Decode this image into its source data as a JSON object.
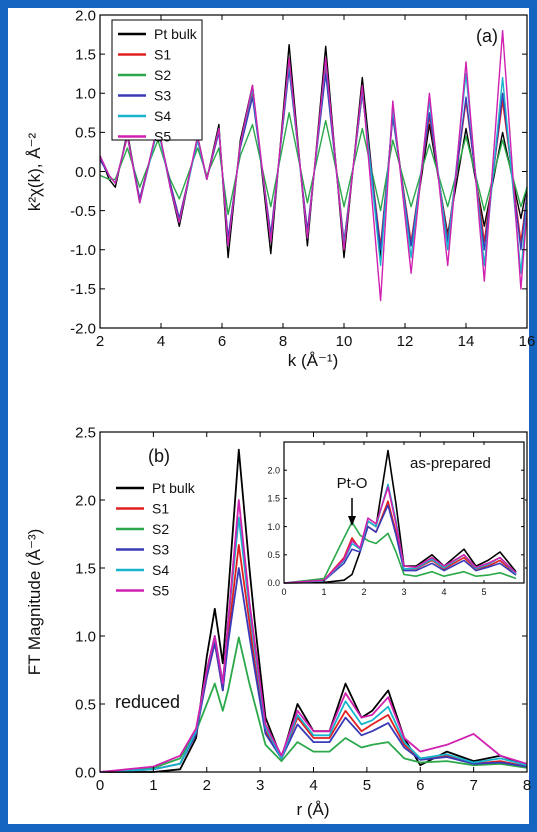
{
  "colors": {
    "frame": "#1565c0",
    "Pt bulk": "#000000",
    "S1": "#e02020",
    "S2": "#2ba84a",
    "S3": "#3a3ab8",
    "S4": "#18b4cc",
    "S5": "#d020b0"
  },
  "chart_data": [
    {
      "type": "line",
      "panel_label": "(a)",
      "xlabel": "k (Å⁻¹)",
      "ylabel": "k²χ(k), Å⁻²",
      "xlim": [
        2,
        16
      ],
      "ylim": [
        -2.0,
        2.0
      ],
      "xticks": [
        "2",
        "4",
        "6",
        "8",
        "10",
        "12",
        "14",
        "16"
      ],
      "yticks": [
        "-2.0",
        "-1.5",
        "-1.0",
        "-0.5",
        "0.0",
        "0.5",
        "1.0",
        "1.5",
        "2.0"
      ],
      "legend_position": "top-left",
      "series": [
        {
          "name": "Pt bulk",
          "x": [
            2,
            2.3,
            2.5,
            2.9,
            3.3,
            3.9,
            4.3,
            4.6,
            5.2,
            5.5,
            5.9,
            6.2,
            6.6,
            7.0,
            7.6,
            8.2,
            8.8,
            9.4,
            10.0,
            10.6,
            11.2,
            11.6,
            12.2,
            12.8,
            13.4,
            14.0,
            14.6,
            15.2,
            15.8,
            16
          ],
          "y": [
            0.2,
            -0.1,
            -0.2,
            0.5,
            -0.4,
            0.6,
            -0.2,
            -0.7,
            0.45,
            -0.1,
            0.6,
            -1.1,
            0.4,
            1.1,
            -1.05,
            1.62,
            -0.95,
            1.6,
            -1.1,
            1.2,
            -1.1,
            0.75,
            -0.95,
            0.6,
            -0.8,
            0.55,
            -0.7,
            0.5,
            -0.6,
            -0.2
          ]
        },
        {
          "name": "S1",
          "x": [
            2,
            2.3,
            2.5,
            2.9,
            3.3,
            3.9,
            4.3,
            4.6,
            5.2,
            5.5,
            5.9,
            6.2,
            6.6,
            7.0,
            7.6,
            8.2,
            8.8,
            9.4,
            10.0,
            10.6,
            11.2,
            11.6,
            12.2,
            12.8,
            13.4,
            14.0,
            14.6,
            15.2,
            15.8,
            16
          ],
          "y": [
            0.2,
            -0.05,
            -0.15,
            0.45,
            -0.35,
            0.55,
            -0.15,
            -0.6,
            0.4,
            -0.1,
            0.55,
            -0.9,
            0.35,
            1.0,
            -0.85,
            1.35,
            -0.8,
            1.35,
            -0.9,
            1.0,
            -0.95,
            0.7,
            -0.9,
            0.7,
            -0.85,
            0.9,
            -0.9,
            0.9,
            -0.9,
            -0.3
          ]
        },
        {
          "name": "S2",
          "x": [
            2,
            2.3,
            2.5,
            2.9,
            3.3,
            3.9,
            4.3,
            4.6,
            5.2,
            5.5,
            5.9,
            6.2,
            6.6,
            7.0,
            7.6,
            8.2,
            8.8,
            9.4,
            10.0,
            10.6,
            11.2,
            11.6,
            12.2,
            12.8,
            13.4,
            14.0,
            14.6,
            15.2,
            15.8,
            16
          ],
          "y": [
            -0.05,
            -0.1,
            -0.1,
            0.3,
            -0.2,
            0.4,
            -0.1,
            -0.35,
            0.3,
            -0.05,
            0.3,
            -0.55,
            0.2,
            0.6,
            -0.45,
            0.75,
            -0.4,
            0.65,
            -0.45,
            0.55,
            -0.5,
            0.4,
            -0.45,
            0.35,
            -0.45,
            0.45,
            -0.5,
            0.4,
            -0.45,
            -0.2
          ]
        },
        {
          "name": "S3",
          "x": [
            2,
            2.3,
            2.5,
            2.9,
            3.3,
            3.9,
            4.3,
            4.6,
            5.2,
            5.5,
            5.9,
            6.2,
            6.6,
            7.0,
            7.6,
            8.2,
            8.8,
            9.4,
            10.0,
            10.6,
            11.2,
            11.6,
            12.2,
            12.8,
            13.4,
            14.0,
            14.6,
            15.2,
            15.8,
            16
          ],
          "y": [
            0.15,
            -0.05,
            -0.15,
            0.45,
            -0.35,
            0.55,
            -0.15,
            -0.6,
            0.4,
            -0.1,
            0.5,
            -0.85,
            0.3,
            0.95,
            -0.8,
            1.3,
            -0.75,
            1.25,
            -0.9,
            1.0,
            -1.0,
            0.7,
            -0.95,
            0.75,
            -0.9,
            0.95,
            -1.0,
            1.0,
            -1.0,
            -0.3
          ]
        },
        {
          "name": "S4",
          "x": [
            2,
            2.3,
            2.5,
            2.9,
            3.3,
            3.9,
            4.3,
            4.6,
            5.2,
            5.5,
            5.9,
            6.2,
            6.6,
            7.0,
            7.6,
            8.2,
            8.8,
            9.4,
            10.0,
            10.6,
            11.2,
            11.6,
            12.2,
            12.8,
            13.4,
            14.0,
            14.6,
            15.2,
            15.8,
            16
          ],
          "y": [
            0.2,
            -0.05,
            -0.15,
            0.45,
            -0.4,
            0.55,
            -0.2,
            -0.65,
            0.4,
            -0.1,
            0.55,
            -0.95,
            0.35,
            1.05,
            -0.9,
            1.4,
            -0.85,
            1.4,
            -0.95,
            1.05,
            -1.2,
            0.8,
            -1.1,
            0.9,
            -1.0,
            1.25,
            -1.2,
            1.2,
            -1.3,
            -0.4
          ]
        },
        {
          "name": "S5",
          "x": [
            2,
            2.3,
            2.5,
            2.9,
            3.3,
            3.9,
            4.3,
            4.6,
            5.2,
            5.5,
            5.9,
            6.2,
            6.6,
            7.0,
            7.6,
            8.2,
            8.8,
            9.4,
            10.0,
            10.6,
            11.2,
            11.6,
            12.2,
            12.8,
            13.4,
            14.0,
            14.6,
            15.2,
            15.8,
            16
          ],
          "y": [
            0.2,
            -0.05,
            -0.15,
            0.45,
            -0.4,
            0.6,
            -0.2,
            -0.65,
            0.45,
            -0.1,
            0.55,
            -0.95,
            0.35,
            1.1,
            -0.9,
            1.45,
            -0.85,
            1.45,
            -1.0,
            1.1,
            -1.65,
            0.9,
            -1.3,
            1.0,
            -1.2,
            1.4,
            -1.4,
            1.8,
            -1.5,
            -0.5
          ]
        }
      ]
    },
    {
      "type": "line",
      "panel_label": "(b)",
      "annotation": "reduced",
      "xlabel": "r (Å)",
      "ylabel": "FT Magnitude (Å⁻³)",
      "xlim": [
        0,
        8
      ],
      "ylim": [
        0.0,
        2.5
      ],
      "xticks": [
        "0",
        "1",
        "2",
        "3",
        "4",
        "5",
        "6",
        "7",
        "8"
      ],
      "yticks": [
        "0.0",
        "0.5",
        "1.0",
        "1.5",
        "2.0",
        "2.5"
      ],
      "legend_position": "left",
      "series": [
        {
          "name": "Pt bulk",
          "x": [
            0,
            1.0,
            1.5,
            1.8,
            2.0,
            2.15,
            2.3,
            2.4,
            2.6,
            2.8,
            2.9,
            3.1,
            3.4,
            3.7,
            4.0,
            4.3,
            4.6,
            4.9,
            5.1,
            5.4,
            5.7,
            6.0,
            6.5,
            7.0,
            7.5,
            8.0
          ],
          "y": [
            0,
            0.0,
            0.02,
            0.25,
            0.85,
            1.2,
            0.8,
            1.3,
            2.37,
            1.5,
            1.1,
            0.4,
            0.1,
            0.5,
            0.3,
            0.3,
            0.65,
            0.4,
            0.45,
            0.6,
            0.25,
            0.05,
            0.15,
            0.08,
            0.12,
            0.05
          ]
        },
        {
          "name": "S1",
          "x": [
            0,
            1.0,
            1.5,
            1.8,
            2.0,
            2.15,
            2.3,
            2.4,
            2.6,
            2.8,
            2.9,
            3.1,
            3.4,
            3.7,
            4.0,
            4.3,
            4.6,
            4.9,
            5.1,
            5.4,
            5.7,
            6.0,
            6.5,
            7.0,
            7.5,
            8.0
          ],
          "y": [
            0,
            0.02,
            0.06,
            0.3,
            0.7,
            0.95,
            0.6,
            1.0,
            1.67,
            1.1,
            0.8,
            0.3,
            0.1,
            0.4,
            0.25,
            0.25,
            0.45,
            0.3,
            0.35,
            0.42,
            0.2,
            0.1,
            0.12,
            0.06,
            0.08,
            0.04
          ]
        },
        {
          "name": "S2",
          "x": [
            0,
            1.0,
            1.5,
            1.8,
            2.0,
            2.15,
            2.3,
            2.4,
            2.6,
            2.8,
            2.9,
            3.1,
            3.4,
            3.7,
            4.0,
            4.3,
            4.6,
            4.9,
            5.1,
            5.4,
            5.7,
            6.0,
            6.5,
            7.0,
            7.5,
            8.0
          ],
          "y": [
            0,
            0.03,
            0.1,
            0.3,
            0.5,
            0.65,
            0.45,
            0.6,
            0.99,
            0.65,
            0.5,
            0.2,
            0.08,
            0.22,
            0.15,
            0.15,
            0.25,
            0.18,
            0.2,
            0.22,
            0.1,
            0.07,
            0.08,
            0.05,
            0.06,
            0.03
          ]
        },
        {
          "name": "S3",
          "x": [
            0,
            1.0,
            1.5,
            1.8,
            2.0,
            2.15,
            2.3,
            2.4,
            2.6,
            2.8,
            2.9,
            3.1,
            3.4,
            3.7,
            4.0,
            4.3,
            4.6,
            4.9,
            5.1,
            5.4,
            5.7,
            6.0,
            6.5,
            7.0,
            7.5,
            8.0
          ],
          "y": [
            0,
            0.02,
            0.06,
            0.28,
            0.7,
            0.95,
            0.6,
            0.95,
            1.5,
            1.0,
            0.75,
            0.28,
            0.1,
            0.35,
            0.22,
            0.22,
            0.4,
            0.27,
            0.3,
            0.36,
            0.18,
            0.09,
            0.11,
            0.06,
            0.07,
            0.04
          ]
        },
        {
          "name": "S4",
          "x": [
            0,
            1.0,
            1.5,
            1.8,
            2.0,
            2.15,
            2.3,
            2.4,
            2.6,
            2.8,
            2.9,
            3.1,
            3.4,
            3.7,
            4.0,
            4.3,
            4.6,
            4.9,
            5.1,
            5.4,
            5.7,
            6.0,
            6.5,
            7.0,
            7.5,
            8.0
          ],
          "y": [
            0,
            0.02,
            0.06,
            0.3,
            0.75,
            1.0,
            0.65,
            1.1,
            1.87,
            1.2,
            0.9,
            0.33,
            0.1,
            0.42,
            0.27,
            0.27,
            0.52,
            0.35,
            0.38,
            0.48,
            0.22,
            0.1,
            0.13,
            0.07,
            0.1,
            0.05
          ]
        },
        {
          "name": "S5",
          "x": [
            0,
            1.0,
            1.5,
            1.8,
            2.0,
            2.15,
            2.3,
            2.4,
            2.6,
            2.8,
            2.9,
            3.1,
            3.4,
            3.7,
            4.0,
            4.3,
            4.6,
            4.9,
            5.1,
            5.4,
            5.7,
            6.0,
            6.5,
            7.0,
            7.5,
            8.0
          ],
          "y": [
            0,
            0.04,
            0.12,
            0.32,
            0.75,
            1.0,
            0.65,
            1.1,
            2.0,
            1.25,
            0.95,
            0.35,
            0.12,
            0.45,
            0.3,
            0.3,
            0.58,
            0.4,
            0.42,
            0.55,
            0.25,
            0.15,
            0.2,
            0.28,
            0.12,
            0.06
          ]
        }
      ]
    },
    {
      "type": "line",
      "annotation": "as-prepared",
      "arrow_label": "Pt-O",
      "arrow_x": 1.7,
      "xlim": [
        0,
        6
      ],
      "ylim": [
        0.0,
        2.5
      ],
      "xticks": [
        "0",
        "1",
        "2",
        "3",
        "4",
        "5"
      ],
      "yticks": [
        "0.0",
        "0.5",
        "1.0",
        "1.5",
        "2.0"
      ],
      "series": [
        {
          "name": "Pt bulk",
          "x": [
            0,
            1.0,
            1.5,
            1.7,
            1.9,
            2.1,
            2.3,
            2.6,
            2.8,
            3.0,
            3.3,
            3.7,
            4.0,
            4.5,
            4.8,
            5.1,
            5.4,
            5.8
          ],
          "y": [
            0,
            0.01,
            0.05,
            0.15,
            0.55,
            1.1,
            1.0,
            2.35,
            1.4,
            0.3,
            0.3,
            0.5,
            0.3,
            0.6,
            0.3,
            0.4,
            0.55,
            0.2
          ]
        },
        {
          "name": "S1",
          "x": [
            0,
            1.0,
            1.5,
            1.7,
            1.9,
            2.1,
            2.3,
            2.6,
            2.8,
            3.0,
            3.3,
            3.7,
            4.0,
            4.5,
            4.8,
            5.1,
            5.4,
            5.8
          ],
          "y": [
            0,
            0.05,
            0.45,
            0.8,
            0.6,
            1.0,
            0.9,
            1.45,
            0.9,
            0.25,
            0.25,
            0.4,
            0.25,
            0.45,
            0.25,
            0.3,
            0.4,
            0.15
          ]
        },
        {
          "name": "S2",
          "x": [
            0,
            1.0,
            1.5,
            1.7,
            1.9,
            2.1,
            2.3,
            2.6,
            2.8,
            3.0,
            3.3,
            3.7,
            4.0,
            4.5,
            4.8,
            5.1,
            5.4,
            5.8
          ],
          "y": [
            0,
            0.08,
            0.8,
            1.08,
            0.85,
            0.75,
            0.7,
            0.88,
            0.55,
            0.15,
            0.12,
            0.2,
            0.12,
            0.2,
            0.12,
            0.14,
            0.18,
            0.08
          ]
        },
        {
          "name": "S3",
          "x": [
            0,
            1.0,
            1.5,
            1.7,
            1.9,
            2.1,
            2.3,
            2.6,
            2.8,
            3.0,
            3.3,
            3.7,
            4.0,
            4.5,
            4.8,
            5.1,
            5.4,
            5.8
          ],
          "y": [
            0,
            0.04,
            0.35,
            0.6,
            0.55,
            1.0,
            0.9,
            1.38,
            0.85,
            0.22,
            0.22,
            0.35,
            0.22,
            0.4,
            0.22,
            0.28,
            0.35,
            0.14
          ]
        },
        {
          "name": "S4",
          "x": [
            0,
            1.0,
            1.5,
            1.7,
            1.9,
            2.1,
            2.3,
            2.6,
            2.8,
            3.0,
            3.3,
            3.7,
            4.0,
            4.5,
            4.8,
            5.1,
            5.4,
            5.8
          ],
          "y": [
            0,
            0.04,
            0.4,
            0.7,
            0.6,
            1.1,
            1.0,
            1.75,
            1.1,
            0.25,
            0.26,
            0.42,
            0.27,
            0.5,
            0.26,
            0.33,
            0.45,
            0.16
          ]
        },
        {
          "name": "S5",
          "x": [
            0,
            1.0,
            1.5,
            1.7,
            1.9,
            2.1,
            2.3,
            2.6,
            2.8,
            3.0,
            3.3,
            3.7,
            4.0,
            4.5,
            4.8,
            5.1,
            5.4,
            5.8
          ],
          "y": [
            0,
            0.05,
            0.42,
            0.75,
            0.62,
            1.15,
            1.05,
            1.7,
            1.05,
            0.3,
            0.28,
            0.45,
            0.3,
            0.5,
            0.28,
            0.35,
            0.45,
            0.18
          ]
        }
      ]
    }
  ]
}
